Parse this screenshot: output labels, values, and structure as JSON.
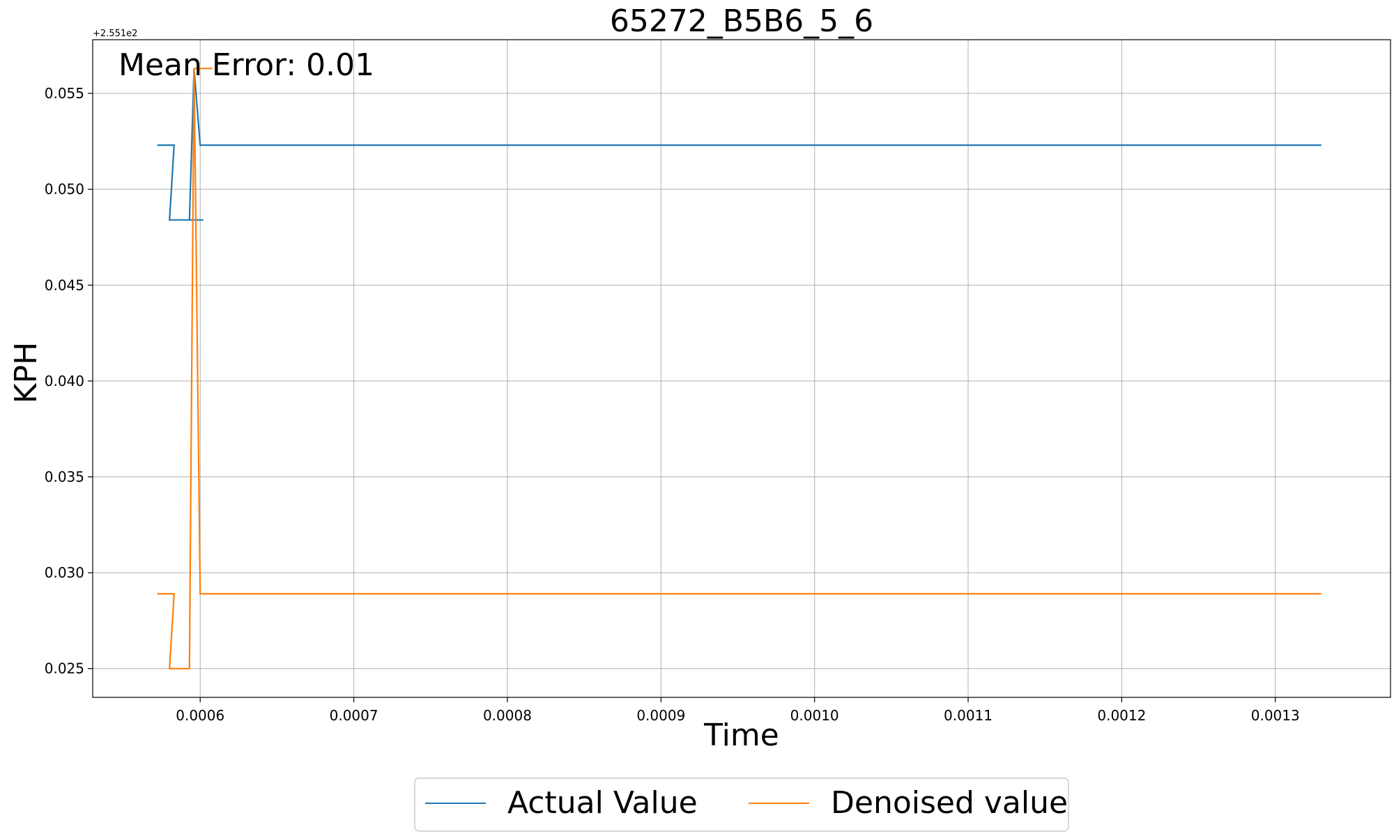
{
  "chart_data": {
    "type": "line",
    "title": "65272_B5B6_5_6",
    "xlabel": "Time",
    "ylabel": "KPH",
    "y_offset_label": "+2.551e2",
    "annotation": "Mean Error: 0.01",
    "grid": true,
    "legend_position": "bottom-center",
    "xlim": [
      0.00053,
      0.001375
    ],
    "ylim": [
      0.0235,
      0.0578
    ],
    "x_ticks": [
      {
        "value": 0.0006,
        "label": "0.0006"
      },
      {
        "value": 0.0007,
        "label": "0.0007"
      },
      {
        "value": 0.0008,
        "label": "0.0008"
      },
      {
        "value": 0.0009,
        "label": "0.0009"
      },
      {
        "value": 0.001,
        "label": "0.0010"
      },
      {
        "value": 0.0011,
        "label": "0.0011"
      },
      {
        "value": 0.0012,
        "label": "0.0012"
      },
      {
        "value": 0.0013,
        "label": "0.0013"
      }
    ],
    "y_ticks": [
      {
        "value": 0.025,
        "label": "0.025"
      },
      {
        "value": 0.03,
        "label": "0.030"
      },
      {
        "value": 0.035,
        "label": "0.035"
      },
      {
        "value": 0.04,
        "label": "0.040"
      },
      {
        "value": 0.045,
        "label": "0.045"
      },
      {
        "value": 0.05,
        "label": "0.050"
      },
      {
        "value": 0.055,
        "label": "0.055"
      }
    ],
    "series": [
      {
        "name": "Actual Value",
        "color": "#1f77b4",
        "x": [
          0.000572,
          0.000583,
          0.00058,
          0.000593,
          0.000596,
          0.0006,
          0.000601,
          0.00133
        ],
        "y": [
          0.0523,
          0.0523,
          0.0484,
          0.0484,
          0.0563,
          0.0523,
          0.0523,
          0.0523
        ],
        "extra_segment": {
          "x": [
            0.000593,
            0.000602
          ],
          "y": [
            0.0484,
            0.0484
          ]
        }
      },
      {
        "name": "Denoised value",
        "color": "#ff7f0e",
        "x": [
          0.000572,
          0.000583,
          0.00058,
          0.000593,
          0.000596,
          0.0006,
          0.000601,
          0.00133
        ],
        "y": [
          0.0289,
          0.0289,
          0.025,
          0.025,
          0.0563,
          0.0289,
          0.0289,
          0.0289
        ],
        "extra_segment": {
          "x": [
            0.000596,
            0.000608
          ],
          "y": [
            0.0563,
            0.0563
          ]
        }
      }
    ]
  }
}
